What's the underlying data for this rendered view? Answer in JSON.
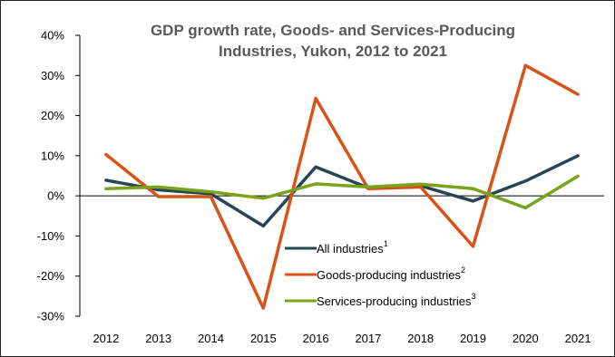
{
  "chart_data": {
    "type": "line",
    "title": [
      "GDP growth rate, Goods- and Services-Producing",
      "Industries, Yukon, 2012 to 2021"
    ],
    "categories": [
      "2012",
      "2013",
      "2014",
      "2015",
      "2016",
      "2017",
      "2018",
      "2019",
      "2020",
      "2021"
    ],
    "ylim": [
      -30,
      40
    ],
    "yticks": [
      40,
      30,
      20,
      10,
      0,
      -10,
      -20,
      -30
    ],
    "ytick_labels": [
      "40%",
      "30%",
      "20%",
      "10%",
      "0%",
      "-10%",
      "-20%",
      "-30%"
    ],
    "grid": false,
    "legend_position": "bottom-center",
    "series": [
      {
        "name": "All industries",
        "note": "1",
        "color": "#264653",
        "values": [
          3.9,
          1.5,
          0.5,
          -7.5,
          7.2,
          2.0,
          2.5,
          -1.3,
          3.7,
          10.0
        ]
      },
      {
        "name": "Goods-producing industries",
        "note": "2",
        "color": "#d95319",
        "values": [
          10.3,
          -0.2,
          -0.2,
          -28.0,
          24.3,
          1.8,
          2.2,
          -12.6,
          32.5,
          25.3
        ]
      },
      {
        "name": "Services-producing industries",
        "note": "3",
        "color": "#7aa319",
        "values": [
          1.8,
          2.2,
          1.0,
          -0.6,
          3.0,
          2.2,
          2.9,
          1.8,
          -3.0,
          4.9
        ]
      }
    ]
  }
}
